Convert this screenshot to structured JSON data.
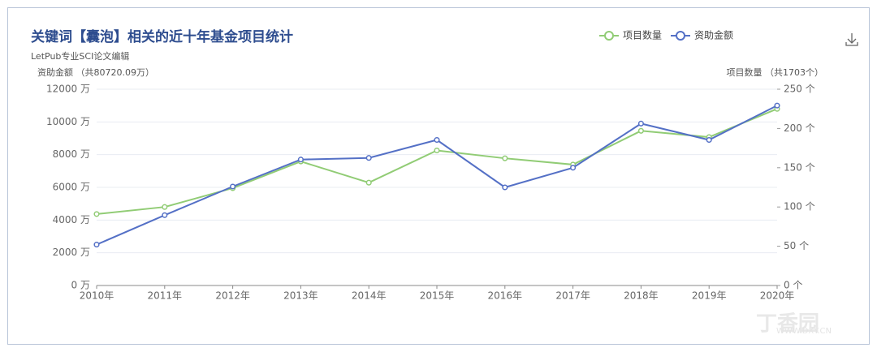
{
  "chart_data": {
    "type": "line",
    "title": "关键词【囊泡】相关的近十年基金项目统计",
    "subtitle": "LetPub专业SCI论文编辑",
    "y_label": "资助金额 （共80720.09万）",
    "y2_label": "项目数量 （共1703个）",
    "watermark": "丁香园",
    "watermark_url": "WWW.DXY.CN",
    "categories": [
      "2010年",
      "2011年",
      "2012年",
      "2013年",
      "2014年",
      "2015年",
      "2016年",
      "2017年",
      "2018年",
      "2019年",
      "2020年"
    ],
    "series": [
      {
        "name": "项目数量",
        "color": "#91cc75",
        "axis": "y2",
        "values": [
          91,
          100,
          124,
          158,
          131,
          172,
          162,
          154,
          197,
          189,
          225
        ]
      },
      {
        "name": "资助金额",
        "color": "#5470c6",
        "values": [
          2500,
          4300,
          6050,
          7700,
          7800,
          8900,
          6000,
          7200,
          9900,
          8900,
          11000
        ]
      }
    ],
    "ylim": [
      0,
      12000
    ],
    "yticks": [
      {
        "value": 0,
        "label": "0 万"
      },
      {
        "value": 2000,
        "label": "2000 万"
      },
      {
        "value": 4000,
        "label": "4000 万"
      },
      {
        "value": 6000,
        "label": "6000 万"
      },
      {
        "value": 8000,
        "label": "8000 万"
      },
      {
        "value": 10000,
        "label": "10000 万"
      },
      {
        "value": 12000,
        "label": "12000 万"
      }
    ],
    "y2lim": [
      0,
      250
    ],
    "y2ticks": [
      {
        "value": 0,
        "label": "0 个"
      },
      {
        "value": 50,
        "label": "50 个"
      },
      {
        "value": 100,
        "label": "100 个"
      },
      {
        "value": 150,
        "label": "150 个"
      },
      {
        "value": 200,
        "label": "200 个"
      },
      {
        "value": 250,
        "label": "250 个"
      }
    ],
    "grid": true
  }
}
